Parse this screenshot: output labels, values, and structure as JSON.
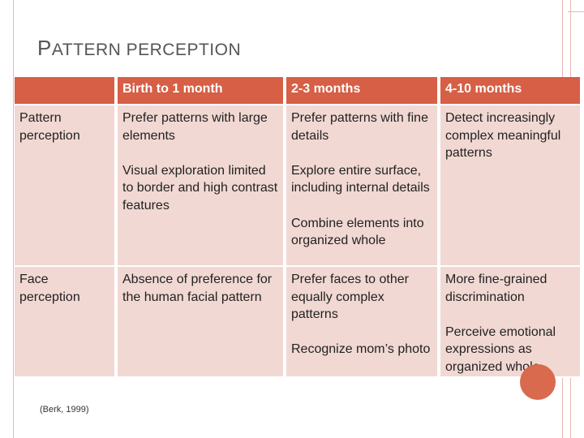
{
  "slide": {
    "title_initial": "P",
    "title_rest": "ATTERN PERCEPTION",
    "citation": "(Berk, 1999)"
  },
  "table": {
    "headers": [
      "",
      "Birth to 1 month",
      "2-3 months",
      "4-10 months"
    ],
    "rows": [
      {
        "label": "Pattern perception",
        "cells": [
          [
            "Prefer patterns with large elements",
            "Visual exploration limited to border  and high contrast features"
          ],
          [
            "Prefer patterns with fine details",
            "Explore entire surface, including internal details",
            "Combine elements into organized whole"
          ],
          [
            "Detect increasingly complex meaningful patterns"
          ]
        ]
      },
      {
        "label": "Face perception",
        "cells": [
          [
            "Absence of preference for the human facial pattern"
          ],
          [
            "Prefer faces to other equally complex patterns",
            "Recognize mom’s photo"
          ],
          [
            "More fine-grained discrimination",
            "Perceive emotional expressions as organized whole"
          ]
        ]
      }
    ]
  },
  "colors": {
    "header_bg": "#d65f45",
    "cell_bg": "#f1d8d3",
    "accent_circle": "#d96a4d",
    "frame_line": "#e4b9ae"
  }
}
